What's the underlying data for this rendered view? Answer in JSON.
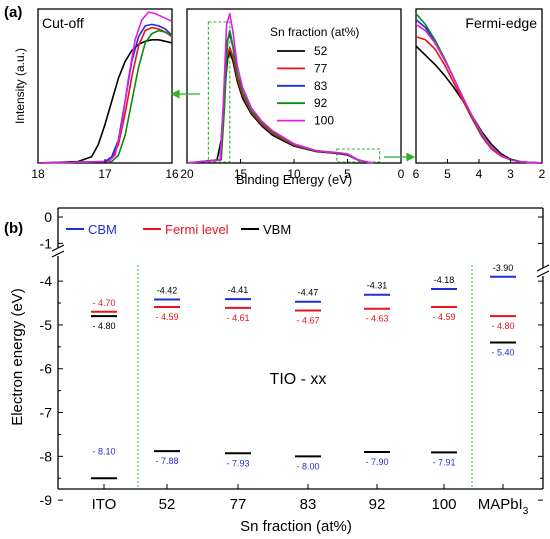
{
  "panel_labels": {
    "a": "(a)",
    "b": "(b)"
  },
  "colors": {
    "s52": "#000000",
    "s77": "#e8141b",
    "s83": "#1f2fd6",
    "s92": "#0d8a12",
    "s100": "#e21ee6",
    "cbm": "#1f2fd6",
    "fermi": "#e8141b",
    "vbm": "#000000",
    "highlight": "#2bb52b"
  },
  "chart_data": [
    {
      "id": "cutoff",
      "type": "line",
      "title": "Cut-off",
      "ylabel": "Intensity (a.u.)",
      "xlim": [
        18,
        16
      ],
      "x_ticks": [
        "18",
        "17",
        "16"
      ],
      "series": [
        {
          "name": "52",
          "color": "#000000",
          "x": [
            18,
            17.4,
            17.2,
            17.1,
            17.0,
            16.9,
            16.8,
            16.7,
            16.6,
            16.5,
            16.4,
            16.3,
            16.2,
            16.1,
            16.0
          ],
          "y": [
            0.0,
            0.01,
            0.04,
            0.12,
            0.25,
            0.4,
            0.55,
            0.66,
            0.73,
            0.77,
            0.79,
            0.8,
            0.8,
            0.79,
            0.78
          ]
        },
        {
          "name": "77",
          "color": "#e8141b",
          "x": [
            18,
            17.0,
            16.9,
            16.8,
            16.7,
            16.6,
            16.5,
            16.4,
            16.3,
            16.2,
            16.1,
            16.0
          ],
          "y": [
            0.0,
            0.01,
            0.03,
            0.12,
            0.32,
            0.56,
            0.76,
            0.86,
            0.88,
            0.87,
            0.85,
            0.82
          ]
        },
        {
          "name": "83",
          "color": "#1f2fd6",
          "x": [
            18,
            17.0,
            16.9,
            16.8,
            16.7,
            16.6,
            16.5,
            16.4,
            16.3,
            16.2,
            16.1,
            16.0
          ],
          "y": [
            0.0,
            0.01,
            0.04,
            0.15,
            0.4,
            0.66,
            0.82,
            0.89,
            0.9,
            0.89,
            0.87,
            0.83
          ]
        },
        {
          "name": "92",
          "color": "#0d8a12",
          "x": [
            18,
            16.9,
            16.8,
            16.7,
            16.6,
            16.5,
            16.4,
            16.3,
            16.2,
            16.1,
            16.0
          ],
          "y": [
            0.0,
            0.01,
            0.05,
            0.18,
            0.4,
            0.62,
            0.78,
            0.84,
            0.86,
            0.85,
            0.83
          ]
        },
        {
          "name": "100",
          "color": "#e21ee6",
          "x": [
            18,
            16.95,
            16.85,
            16.75,
            16.65,
            16.55,
            16.45,
            16.35,
            16.25,
            16.15,
            16.05,
            16.0
          ],
          "y": [
            0.0,
            0.01,
            0.05,
            0.25,
            0.55,
            0.8,
            0.93,
            0.98,
            0.97,
            0.95,
            0.93,
            0.92
          ]
        }
      ]
    },
    {
      "id": "full",
      "type": "line",
      "xlabel": "Binding Energy (eV)",
      "xlim": [
        20,
        0
      ],
      "x_ticks": [
        "20",
        "15",
        "10",
        "5",
        "0"
      ],
      "legend_title": "Sn fraction (at%)",
      "legend_position": "top-right",
      "highlight_boxes": [
        {
          "x": [
            18,
            16
          ]
        },
        {
          "x": [
            6,
            2
          ]
        }
      ],
      "series": [
        {
          "name": "52",
          "color": "#000000",
          "x": [
            20,
            17.2,
            16.8,
            16.5,
            16.2,
            16.0,
            15.7,
            15.3,
            14.8,
            14.0,
            13.0,
            12.0,
            10.0,
            8.0,
            7.0,
            6.0,
            5.0,
            4.0,
            3.0,
            2.5
          ],
          "y": [
            0.0,
            0.02,
            0.15,
            0.45,
            0.68,
            0.72,
            0.66,
            0.53,
            0.42,
            0.32,
            0.24,
            0.18,
            0.11,
            0.075,
            0.068,
            0.062,
            0.052,
            0.018,
            0.003,
            0.0
          ]
        },
        {
          "name": "77",
          "color": "#e8141b",
          "x": [
            20,
            16.9,
            16.6,
            16.3,
            16.0,
            15.7,
            15.3,
            14.8,
            14.0,
            13.0,
            12.0,
            10.0,
            8.0,
            7.0,
            6.0,
            5.0,
            4.0,
            3.0,
            2.5
          ],
          "y": [
            0.0,
            0.02,
            0.3,
            0.68,
            0.75,
            0.69,
            0.55,
            0.44,
            0.33,
            0.25,
            0.19,
            0.115,
            0.078,
            0.07,
            0.064,
            0.055,
            0.019,
            0.003,
            0.0
          ]
        },
        {
          "name": "83",
          "color": "#1f2fd6",
          "x": [
            20,
            16.9,
            16.6,
            16.3,
            16.0,
            15.7,
            15.3,
            14.8,
            14.0,
            13.0,
            12.0,
            10.0,
            8.0,
            7.0,
            6.0,
            5.0,
            4.0,
            3.0,
            2.5
          ],
          "y": [
            0.0,
            0.02,
            0.35,
            0.78,
            0.84,
            0.75,
            0.58,
            0.46,
            0.34,
            0.26,
            0.2,
            0.12,
            0.08,
            0.072,
            0.066,
            0.057,
            0.02,
            0.003,
            0.0
          ]
        },
        {
          "name": "92",
          "color": "#0d8a12",
          "x": [
            20,
            16.8,
            16.5,
            16.2,
            16.0,
            15.7,
            15.3,
            14.8,
            14.0,
            13.0,
            12.0,
            10.0,
            8.0,
            7.0,
            6.0,
            5.0,
            4.0,
            3.0,
            2.5
          ],
          "y": [
            0.0,
            0.02,
            0.35,
            0.8,
            0.86,
            0.76,
            0.58,
            0.46,
            0.34,
            0.26,
            0.2,
            0.12,
            0.08,
            0.072,
            0.066,
            0.057,
            0.02,
            0.003,
            0.0
          ]
        },
        {
          "name": "100",
          "color": "#e21ee6",
          "x": [
            20,
            16.9,
            16.6,
            16.3,
            16.0,
            15.7,
            15.3,
            14.8,
            14.0,
            13.0,
            12.0,
            10.0,
            8.0,
            7.0,
            6.0,
            5.0,
            4.0,
            3.0,
            2.5
          ],
          "y": [
            0.0,
            0.02,
            0.4,
            0.9,
            0.97,
            0.85,
            0.63,
            0.49,
            0.36,
            0.27,
            0.21,
            0.125,
            0.082,
            0.074,
            0.068,
            0.06,
            0.021,
            0.003,
            0.0
          ]
        }
      ]
    },
    {
      "id": "fermi",
      "type": "line",
      "title": "Fermi-edge",
      "xlim": [
        6,
        2
      ],
      "x_ticks": [
        "6",
        "5",
        "4",
        "3",
        "2"
      ],
      "series": [
        {
          "name": "52",
          "color": "#000000",
          "x": [
            6.0,
            5.7,
            5.4,
            5.1,
            4.8,
            4.5,
            4.2,
            3.9,
            3.6,
            3.3,
            3.0,
            2.7,
            2.4,
            2.1,
            2.0
          ],
          "y": [
            0.76,
            0.7,
            0.64,
            0.57,
            0.49,
            0.4,
            0.3,
            0.2,
            0.12,
            0.06,
            0.025,
            0.01,
            0.004,
            0.001,
            0.0
          ]
        },
        {
          "name": "77",
          "color": "#e8141b",
          "x": [
            6.0,
            5.7,
            5.4,
            5.1,
            4.8,
            4.5,
            4.2,
            3.9,
            3.6,
            3.3,
            3.0,
            2.7,
            2.4,
            2.1,
            2.0
          ],
          "y": [
            0.82,
            0.8,
            0.74,
            0.64,
            0.52,
            0.4,
            0.28,
            0.17,
            0.09,
            0.045,
            0.02,
            0.008,
            0.003,
            0.001,
            0.0
          ]
        },
        {
          "name": "83",
          "color": "#1f2fd6",
          "x": [
            6.0,
            5.7,
            5.4,
            5.1,
            4.8,
            4.5,
            4.2,
            3.9,
            3.6,
            3.3,
            3.0,
            2.7,
            2.4,
            2.1,
            2.0
          ],
          "y": [
            0.93,
            0.88,
            0.79,
            0.68,
            0.55,
            0.42,
            0.29,
            0.18,
            0.1,
            0.05,
            0.02,
            0.008,
            0.003,
            0.001,
            0.0
          ]
        },
        {
          "name": "92",
          "color": "#0d8a12",
          "x": [
            6.0,
            5.7,
            5.4,
            5.1,
            4.8,
            4.5,
            4.2,
            3.9,
            3.6,
            3.3,
            3.0,
            2.7,
            2.4,
            2.1,
            2.0
          ],
          "y": [
            0.97,
            0.9,
            0.8,
            0.68,
            0.55,
            0.42,
            0.29,
            0.18,
            0.1,
            0.05,
            0.02,
            0.008,
            0.003,
            0.001,
            0.0
          ]
        },
        {
          "name": "100",
          "color": "#e21ee6",
          "x": [
            6.0,
            5.7,
            5.4,
            5.1,
            4.8,
            4.5,
            4.2,
            3.9,
            3.6,
            3.3,
            3.0,
            2.7,
            2.4,
            2.1,
            2.0
          ],
          "y": [
            0.9,
            0.86,
            0.78,
            0.67,
            0.55,
            0.42,
            0.3,
            0.19,
            0.1,
            0.05,
            0.02,
            0.008,
            0.003,
            0.001,
            0.0
          ]
        }
      ]
    },
    {
      "id": "levels",
      "type": "scatter",
      "xlabel": "Sn fraction (at%)",
      "ylabel": "Electron energy (eV)",
      "ylim": [
        -9,
        0
      ],
      "axis_break": [
        -1.1,
        -3.7
      ],
      "y_ticks": [
        "0",
        "-1",
        "-4",
        "-5",
        "-6",
        "-7",
        "-8",
        "-9"
      ],
      "categories": [
        "ITO",
        "52",
        "77",
        "83",
        "92",
        "100",
        "MAPbI3"
      ],
      "category_labels": [
        {
          "text": "ITO"
        },
        {
          "text": "52"
        },
        {
          "text": "77"
        },
        {
          "text": "83"
        },
        {
          "text": "92"
        },
        {
          "text": "100"
        },
        {
          "text": "MAPbI",
          "sub": "3"
        }
      ],
      "legend": [
        {
          "name": "CBM",
          "color": "#1f2fd6"
        },
        {
          "name": "Fermi level",
          "color": "#e8141b"
        },
        {
          "name": "VBM",
          "color": "#000000"
        }
      ],
      "group_label": "TIO - xx",
      "cbm": [
        null,
        -4.42,
        -4.41,
        -4.47,
        -4.31,
        -4.18,
        -3.9
      ],
      "fermi": [
        -4.7,
        -4.59,
        -4.61,
        -4.67,
        -4.63,
        -4.59,
        -4.8
      ],
      "vbm": [
        -4.8,
        -7.88,
        -7.93,
        -8.0,
        -7.9,
        -7.91,
        -5.4
      ],
      "extra_ito_bar": -8.5,
      "labels": [
        {
          "cat": 0,
          "text": "- 4.70",
          "kind": "fermi"
        },
        {
          "cat": 0,
          "text": "- 4.80",
          "kind": "vbm"
        },
        {
          "cat": 0,
          "text": "- 8.10",
          "kind": "cbm"
        },
        {
          "cat": 1,
          "text": "-4.42",
          "kind": "vbm"
        },
        {
          "cat": 1,
          "text": "- 4.59",
          "kind": "fermi"
        },
        {
          "cat": 1,
          "text": "- 7.88",
          "kind": "cbm"
        },
        {
          "cat": 2,
          "text": "-4.41",
          "kind": "vbm"
        },
        {
          "cat": 2,
          "text": "- 4.61",
          "kind": "fermi"
        },
        {
          "cat": 2,
          "text": "- 7.93",
          "kind": "cbm"
        },
        {
          "cat": 3,
          "text": "-4.47",
          "kind": "vbm"
        },
        {
          "cat": 3,
          "text": "- 4.67",
          "kind": "fermi"
        },
        {
          "cat": 3,
          "text": "- 8.00",
          "kind": "cbm"
        },
        {
          "cat": 4,
          "text": "-4.31",
          "kind": "vbm"
        },
        {
          "cat": 4,
          "text": "- 4.63",
          "kind": "fermi"
        },
        {
          "cat": 4,
          "text": "- 7.90",
          "kind": "cbm"
        },
        {
          "cat": 5,
          "text": "-4.18",
          "kind": "vbm"
        },
        {
          "cat": 5,
          "text": "- 4.59",
          "kind": "fermi"
        },
        {
          "cat": 5,
          "text": "- 7.91",
          "kind": "cbm"
        },
        {
          "cat": 6,
          "text": "-3.90",
          "kind": "vbm"
        },
        {
          "cat": 6,
          "text": "- 4.80",
          "kind": "fermi"
        },
        {
          "cat": 6,
          "text": "- 5.40",
          "kind": "cbm"
        }
      ]
    }
  ]
}
